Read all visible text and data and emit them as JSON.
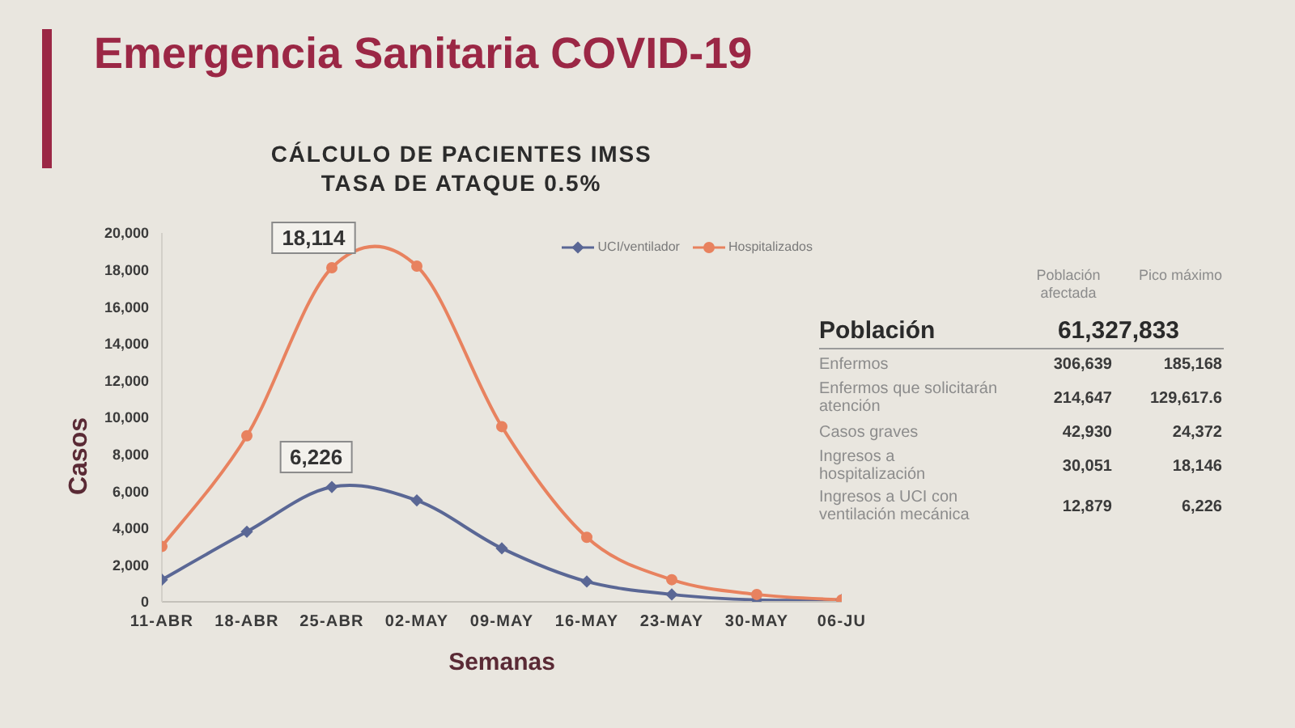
{
  "chart_data": [
    {
      "type": "line",
      "title": "Emergencia Sanitaria COVID-19",
      "subtitle": "CÁLCULO DE PACIENTES IMSS\nTASA DE ATAQUE 0.5%",
      "xlabel": "Semanas",
      "ylabel": "Casos",
      "categories": [
        "11-ABR",
        "18-ABR",
        "25-ABR",
        "02-MAY",
        "09-MAY",
        "16-MAY",
        "23-MAY",
        "30-MAY",
        "06-JU"
      ],
      "series": [
        {
          "name": "UCI/ventilador",
          "color": "#5a6795",
          "marker": "diamond",
          "values": [
            1200,
            3800,
            6226,
            5500,
            2900,
            1100,
            400,
            100,
            100
          ],
          "value_labels": [
            null,
            null,
            "6,226",
            null,
            null,
            null,
            null,
            null,
            null
          ]
        },
        {
          "name": "Hospitalizados",
          "color": "#e8825f",
          "marker": "circle",
          "values": [
            3000,
            9000,
            18114,
            18200,
            9500,
            3500,
            1200,
            400,
            100
          ],
          "value_labels": [
            null,
            null,
            "18,114",
            null,
            null,
            null,
            null,
            null,
            null
          ]
        }
      ],
      "ylim": [
        0,
        20000
      ],
      "yticks": [
        0,
        {
          "value": 2000,
          "label": "2,000"
        },
        {
          "value": 4000,
          "label": "4,000"
        },
        {
          "value": 6000,
          "label": "6,000"
        },
        {
          "value": 8000,
          "label": "8,000"
        },
        {
          "value": 10000,
          "label": "10,000"
        },
        {
          "value": 12000,
          "label": "12,000"
        },
        {
          "value": 14000,
          "label": "14,000"
        },
        {
          "value": 16000,
          "label": "16,000"
        },
        {
          "value": 18000,
          "label": "18,000"
        },
        {
          "value": 20000,
          "label": "20,000"
        }
      ],
      "legend": "top right"
    },
    {
      "type": "other",
      "annotations": [
        "Población afectada",
        "Pico máximo",
        "Población",
        "61,327,833",
        "Enfermos",
        "306,639",
        "185,168",
        "Enfermos que solicitarán atención",
        "214,647",
        "129,617.6",
        "Casos graves",
        "42,930",
        "24,372",
        "Ingresos a hospitalización",
        "30,051",
        "18,146",
        "Ingresos a UCI con ventilación mecánica",
        "12,879",
        "6,226"
      ]
    }
  ]
}
